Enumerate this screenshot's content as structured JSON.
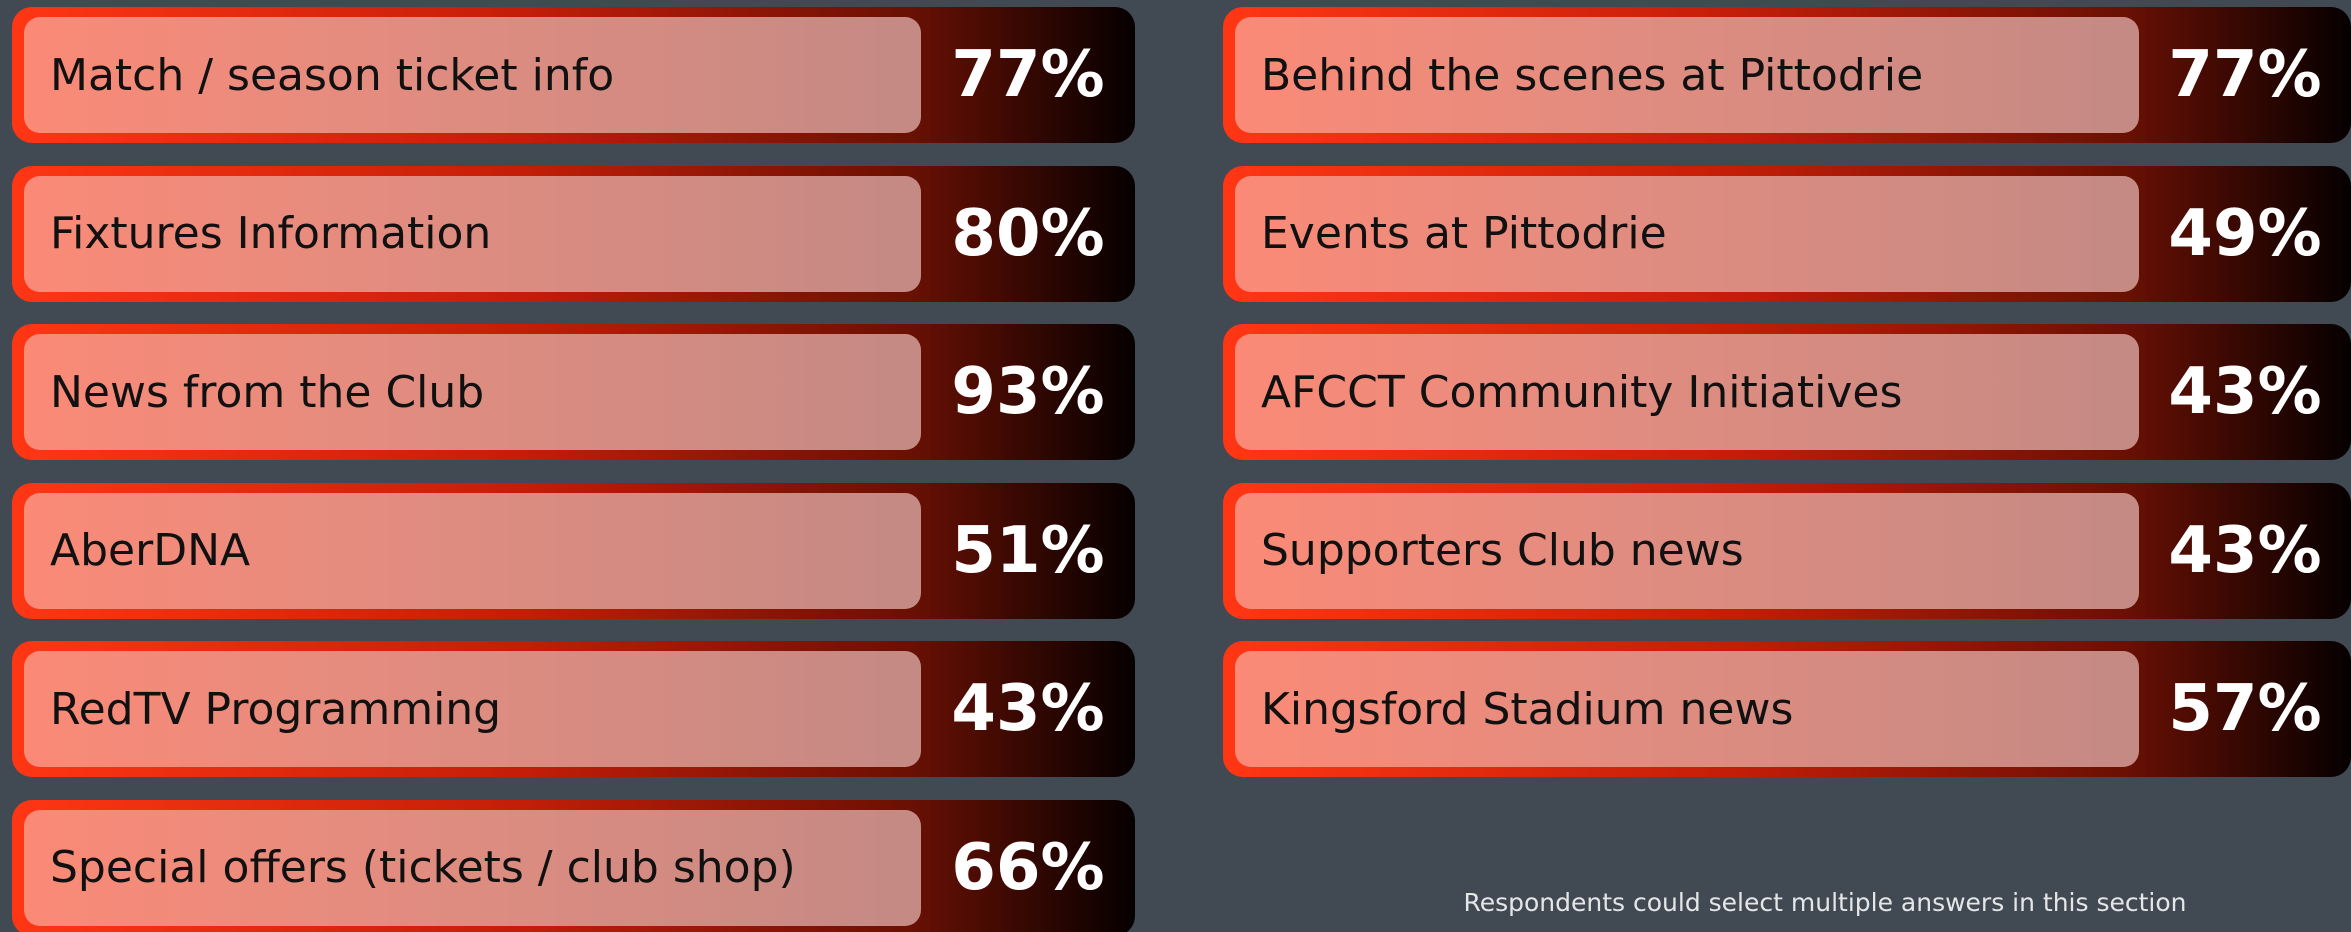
{
  "columns": [
    [
      {
        "label": "Match / season ticket info",
        "percent": "77%"
      },
      {
        "label": "Fixtures Information",
        "percent": "80%"
      },
      {
        "label": "News from the Club",
        "percent": "93%"
      },
      {
        "label": "AberDNA",
        "percent": "51%"
      },
      {
        "label": "RedTV Programming",
        "percent": "43%"
      },
      {
        "label": "Special offers (tickets / club shop)",
        "percent": "66%"
      }
    ],
    [
      {
        "label": "Behind the scenes at Pittodrie",
        "percent": "77%"
      },
      {
        "label": "Events at Pittodrie",
        "percent": "49%"
      },
      {
        "label": "AFCCT Community Initiatives",
        "percent": "43%"
      },
      {
        "label": "Supporters Club news",
        "percent": "43%"
      },
      {
        "label": "Kingsford Stadium news",
        "percent": "57%"
      }
    ]
  ],
  "note": "Respondents could select multiple answers in this section"
}
